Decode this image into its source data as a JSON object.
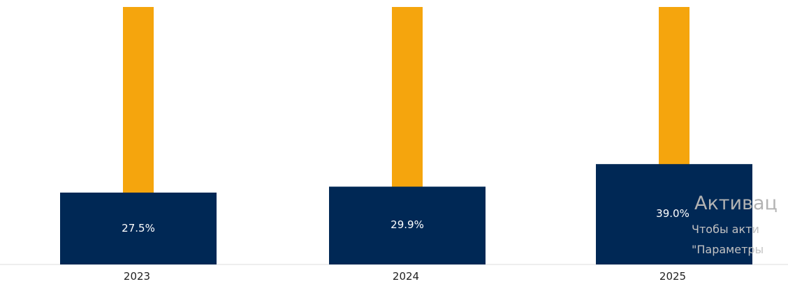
{
  "chart_data": {
    "type": "bar",
    "categories": [
      "2023",
      "2024",
      "2025"
    ],
    "series": [
      {
        "values": [
          27.5,
          29.9,
          39.0
        ],
        "labels": [
          "27.5%",
          "29.9%",
          "39.0%"
        ],
        "color": "#002855"
      },
      {
        "values": [
          null,
          null,
          null
        ],
        "color": "#f5a50d"
      }
    ],
    "title": "",
    "xlabel": "",
    "ylabel": "",
    "grid": false,
    "legend": "none"
  },
  "watermark": {
    "title": "Активац",
    "line1": "Чтобы акти",
    "line2": "\"Параметры"
  }
}
